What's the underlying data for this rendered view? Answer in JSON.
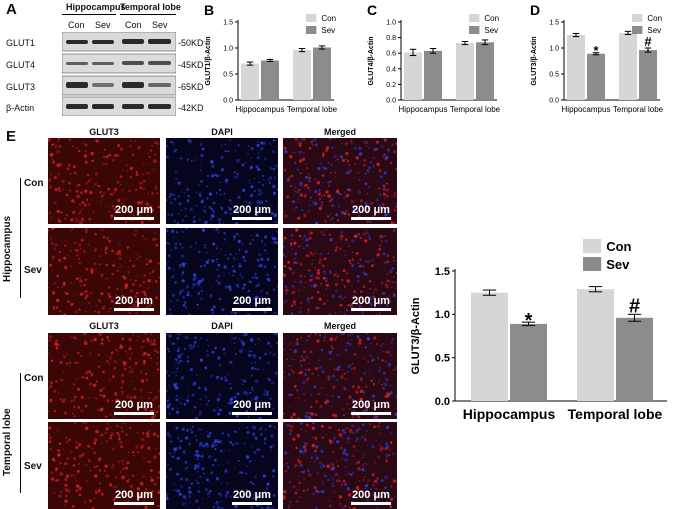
{
  "colors": {
    "con": "#d6d6d6",
    "sev": "#8c8c8c",
    "red_channel": "#d42020",
    "blue_channel": "#2a40d8"
  },
  "panel_a": {
    "label": "A",
    "regions": [
      "Hippocampus",
      "Temporal lobe"
    ],
    "lanes": [
      "Con",
      "Sev",
      "Con",
      "Sev"
    ],
    "bands": [
      {
        "name": "GLUT1",
        "size": "-50KD"
      },
      {
        "name": "GLUT4",
        "size": "-45KD"
      },
      {
        "name": "GLUT3",
        "size": "-65KD"
      },
      {
        "name": "β-Actin",
        "size": "-42KD"
      }
    ]
  },
  "panel_e": {
    "label": "E",
    "channels": [
      "GLUT3",
      "DAPI",
      "Merged"
    ],
    "groups": [
      "Hippocampus",
      "Temporal lobe"
    ],
    "conditions": [
      "Con",
      "Sev"
    ],
    "scale_bar": "200 μm"
  },
  "chart_data": [
    {
      "panel": "B",
      "type": "bar",
      "categories": [
        "Hippocampus",
        "Temporal lobe"
      ],
      "series": [
        {
          "name": "Con",
          "values": [
            0.7,
            0.96
          ]
        },
        {
          "name": "Sev",
          "values": [
            0.76,
            1.01
          ]
        }
      ],
      "errors": [
        [
          0.03,
          0.03
        ],
        [
          0.02,
          0.03
        ]
      ],
      "ylabel": "GLUT1/β-Actin",
      "ylim": [
        0,
        1.5
      ],
      "yticks": [
        "0.0",
        "0.5",
        "1.0",
        "1.5"
      ],
      "marks": [
        [
          "",
          ""
        ],
        [
          "",
          ""
        ]
      ],
      "legend": "top-right"
    },
    {
      "panel": "C",
      "type": "bar",
      "categories": [
        "Hippocampus",
        "Temporal lobe"
      ],
      "series": [
        {
          "name": "Con",
          "values": [
            0.61,
            0.73
          ]
        },
        {
          "name": "Sev",
          "values": [
            0.63,
            0.74
          ]
        }
      ],
      "errors": [
        [
          0.04,
          0.02
        ],
        [
          0.03,
          0.03
        ]
      ],
      "ylabel": "GLUT4/β-Actin",
      "ylim": [
        0,
        1.0
      ],
      "yticks": [
        "0.0",
        "0.2",
        "0.4",
        "0.6",
        "0.8",
        "1.0"
      ],
      "marks": [
        [
          "",
          ""
        ],
        [
          "",
          ""
        ]
      ],
      "legend": "top-right"
    },
    {
      "panel": "D",
      "type": "bar",
      "categories": [
        "Hippocampus",
        "Temporal lobe"
      ],
      "series": [
        {
          "name": "Con",
          "values": [
            1.25,
            1.29
          ]
        },
        {
          "name": "Sev",
          "values": [
            0.89,
            0.96
          ]
        }
      ],
      "errors": [
        [
          0.03,
          0.03
        ],
        [
          0.02,
          0.04
        ]
      ],
      "ylabel": "GLUT3/β-Actin",
      "ylim": [
        0,
        1.5
      ],
      "yticks": [
        "0.0",
        "0.5",
        "1.0",
        "1.5"
      ],
      "marks": [
        [
          "",
          ""
        ],
        [
          "*",
          "#"
        ]
      ],
      "legend": "top-right"
    },
    {
      "panel": "",
      "type": "bar",
      "categories": [
        "Hippocampus",
        "Temporal lobe"
      ],
      "series": [
        {
          "name": "Con",
          "values": [
            1.25,
            1.29
          ]
        },
        {
          "name": "Sev",
          "values": [
            0.89,
            0.96
          ]
        }
      ],
      "errors": [
        [
          0.03,
          0.03
        ],
        [
          0.02,
          0.04
        ]
      ],
      "ylabel": "GLUT3/β-Actin",
      "ylim": [
        0,
        1.5
      ],
      "yticks": [
        "0.0",
        "0.5",
        "1.0",
        "1.5"
      ],
      "marks": [
        [
          "",
          ""
        ],
        [
          "*",
          "#"
        ]
      ],
      "legend": "top-right"
    }
  ]
}
